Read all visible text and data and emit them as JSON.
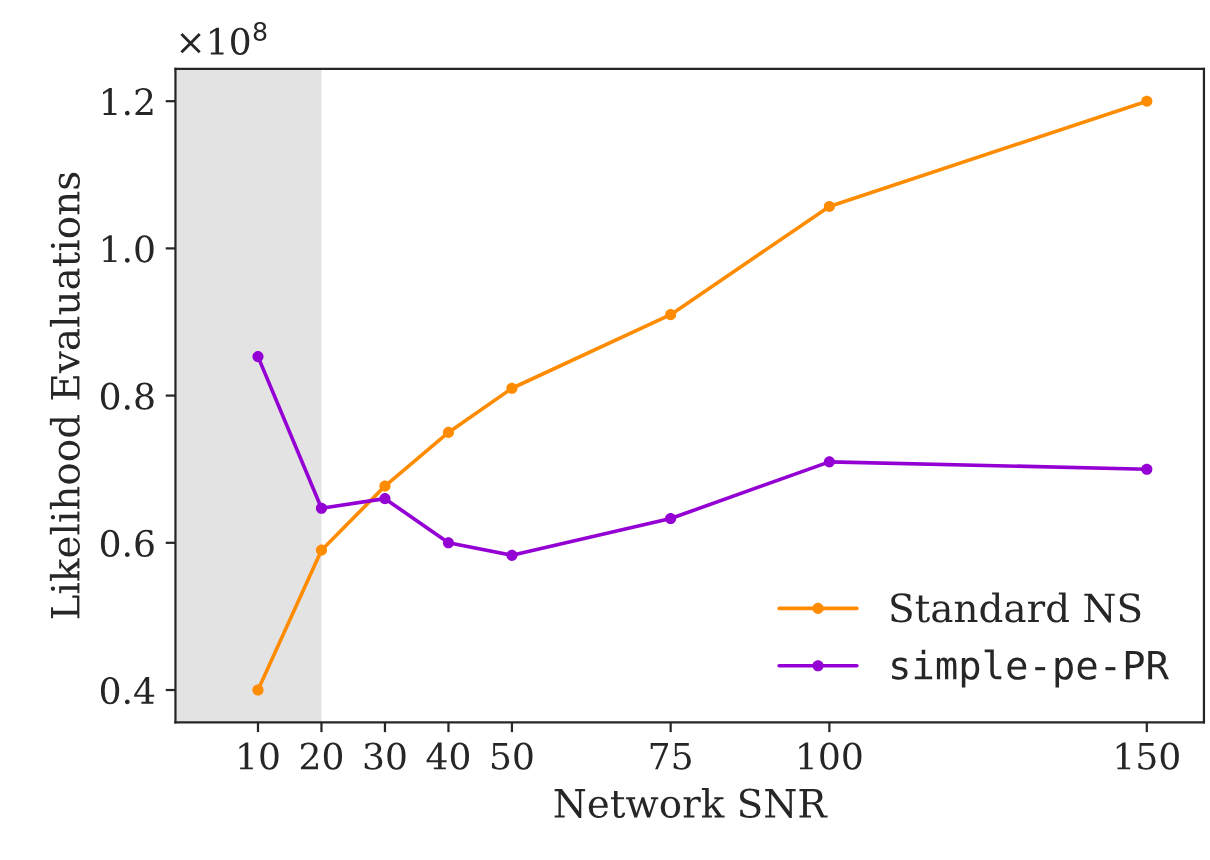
{
  "chart_data": {
    "type": "line",
    "xlabel": "Network SNR",
    "ylabel": "Likelihood Evaluations",
    "x": [
      10,
      20,
      30,
      40,
      50,
      75,
      100,
      150
    ],
    "series": [
      {
        "name": "Standard NS",
        "color": "#ff8c00",
        "values": [
          0.4,
          0.59,
          0.677,
          0.75,
          0.81,
          0.91,
          1.057,
          1.2
        ]
      },
      {
        "name": "simple-pe-PR",
        "color": "#9400d3",
        "values": [
          0.853,
          0.647,
          0.66,
          0.6,
          0.583,
          0.633,
          0.71,
          0.7
        ]
      }
    ],
    "xlim": [
      -3,
      159
    ],
    "ylim": [
      0.356,
      1.244
    ],
    "xticks": [
      10,
      20,
      30,
      40,
      50,
      75,
      100,
      150
    ],
    "yticks": [
      0.4,
      0.6,
      0.8,
      {
        "value": 1.0,
        "label": "1.0"
      },
      1.2
    ],
    "bands": [
      {
        "axis": "x",
        "from": -3,
        "to": 20,
        "color": "#e3e3e3"
      }
    ],
    "annotations": [
      "×10$^{8}$"
    ],
    "marker": "circle",
    "line_style": "solid",
    "legend": "bottom right",
    "grid": false
  }
}
